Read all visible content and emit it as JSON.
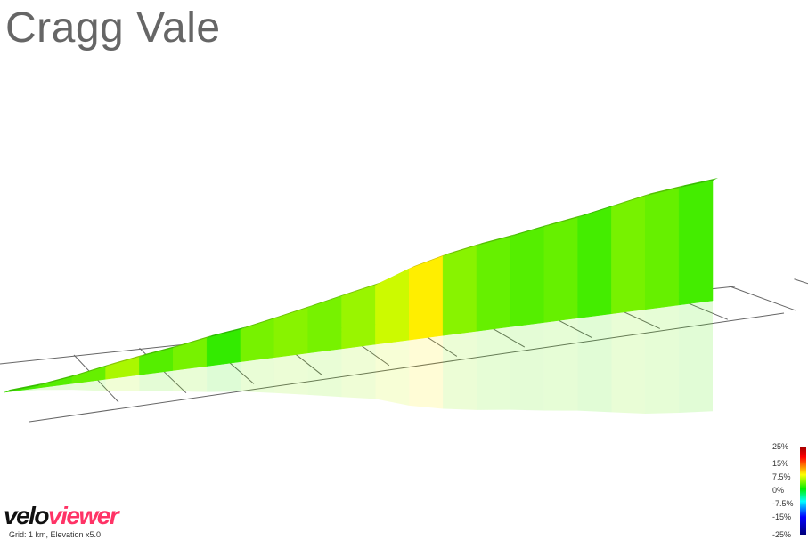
{
  "title": "Cragg Vale",
  "logo": {
    "part1": "velo",
    "part2": "viewer"
  },
  "grid_note": "Grid: 1 km, Elevation x5.0",
  "legend": {
    "ticks": [
      "25%",
      "15%",
      "7.5%",
      "0%",
      "-7.5%",
      "-15%",
      "-25%"
    ]
  },
  "colors": {
    "title": "#666666",
    "brand_accent": "#ff3366",
    "grid_line": "#666666"
  },
  "chart_data": {
    "type": "area",
    "title": "Cragg Vale",
    "xlabel": "",
    "ylabel": "",
    "x_unit": "km",
    "grid_spacing_km": 1,
    "elevation_exaggeration": 5.0,
    "gradient_scale_pct": [
      25,
      15,
      7.5,
      0,
      -7.5,
      -15,
      -25
    ],
    "profile": [
      {
        "x_km": 0.0,
        "elevation_m": 0,
        "gradient_pct": 2.0
      },
      {
        "x_km": 0.5,
        "elevation_m": 6,
        "gradient_pct": 2.5
      },
      {
        "x_km": 1.0,
        "elevation_m": 18,
        "gradient_pct": 3.0
      },
      {
        "x_km": 1.5,
        "elevation_m": 34,
        "gradient_pct": 5.0
      },
      {
        "x_km": 2.0,
        "elevation_m": 48,
        "gradient_pct": 2.5
      },
      {
        "x_km": 2.5,
        "elevation_m": 60,
        "gradient_pct": 3.5
      },
      {
        "x_km": 3.0,
        "elevation_m": 75,
        "gradient_pct": 1.5
      },
      {
        "x_km": 3.5,
        "elevation_m": 86,
        "gradient_pct": 3.5
      },
      {
        "x_km": 4.0,
        "elevation_m": 103,
        "gradient_pct": 4.0
      },
      {
        "x_km": 4.5,
        "elevation_m": 121,
        "gradient_pct": 3.5
      },
      {
        "x_km": 5.0,
        "elevation_m": 140,
        "gradient_pct": 4.5
      },
      {
        "x_km": 5.5,
        "elevation_m": 158,
        "gradient_pct": 6.0
      },
      {
        "x_km": 6.0,
        "elevation_m": 190,
        "gradient_pct": 8.0
      },
      {
        "x_km": 6.5,
        "elevation_m": 212,
        "gradient_pct": 4.0
      },
      {
        "x_km": 7.0,
        "elevation_m": 228,
        "gradient_pct": 3.0
      },
      {
        "x_km": 7.5,
        "elevation_m": 240,
        "gradient_pct": 2.5
      },
      {
        "x_km": 8.0,
        "elevation_m": 255,
        "gradient_pct": 3.0
      },
      {
        "x_km": 8.5,
        "elevation_m": 268,
        "gradient_pct": 2.0
      },
      {
        "x_km": 9.0,
        "elevation_m": 285,
        "gradient_pct": 3.5
      },
      {
        "x_km": 9.5,
        "elevation_m": 302,
        "gradient_pct": 3.0
      },
      {
        "x_km": 10.0,
        "elevation_m": 312,
        "gradient_pct": 2.0
      },
      {
        "x_km": 10.5,
        "elevation_m": 320,
        "gradient_pct": 2.0
      }
    ]
  }
}
